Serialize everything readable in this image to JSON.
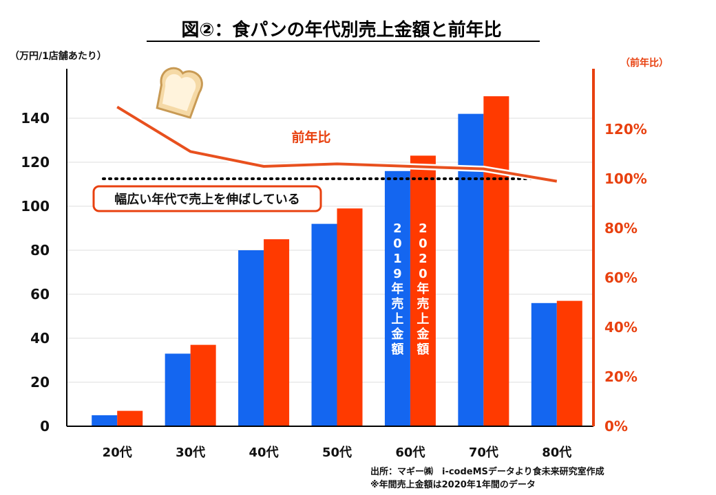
{
  "title": "図②：食パンの年代別売上金額と前年比",
  "left_axis_unit": "（万円/1店舗あたり）",
  "right_axis_unit": "（前年比）",
  "annotation_box": "幅広い年代で売上を伸ばしている",
  "line_label": "前年比",
  "vertical_label_2019": "2019年売上金額",
  "vertical_label_2020": "2020年売上金額",
  "source_line1": "出所：マギー㈱　i-codeMSデータより食未来研究室作成",
  "source_line2": "※年間売上金額は2020年1年間のデータ",
  "colors": {
    "series_2019": "#1466f0",
    "series_2020": "#ff3a00",
    "line": "#e8501e",
    "grid": "#dddddd"
  },
  "chart_data": {
    "type": "bar",
    "categories": [
      "20代",
      "30代",
      "40代",
      "50代",
      "60代",
      "70代",
      "80代"
    ],
    "series": [
      {
        "values": [
          5,
          33,
          80,
          92,
          116,
          142,
          56
        ]
      },
      {
        "values": [
          7,
          37,
          85,
          99,
          123,
          150,
          57
        ]
      }
    ],
    "ylim": [
      0,
      150
    ],
    "yticks": [
      0,
      20,
      40,
      60,
      80,
      100,
      120,
      140
    ],
    "y2": {
      "name": "前年比",
      "type": "line",
      "values": [
        129,
        111,
        105,
        106,
        105,
        104,
        99
      ],
      "ylim": [
        0,
        130
      ],
      "ticks": [
        "0%",
        "20%",
        "40%",
        "60%",
        "80%",
        "100%",
        "120%"
      ],
      "reference_line": 100
    },
    "grid": true
  }
}
